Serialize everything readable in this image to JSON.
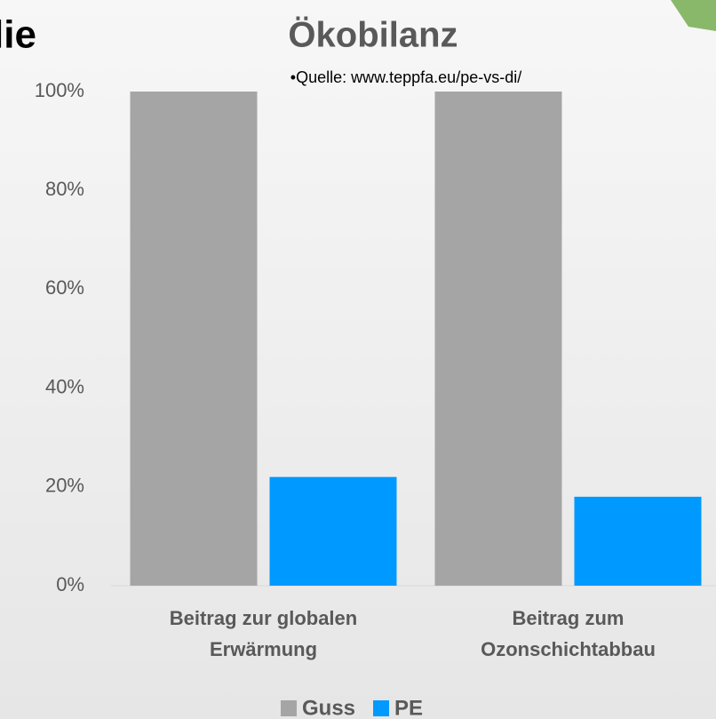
{
  "slide_text": "lie",
  "chart_data": {
    "type": "bar",
    "title": "Ökobilanz",
    "subtitle": "•Quelle: www.teppfa.eu/pe-vs-di/",
    "categories": [
      "Beitrag zur globalen Erwärmung",
      "Beitrag zum Ozonschichtabbau"
    ],
    "series": [
      {
        "name": "Guss",
        "color": "#a5a5a5",
        "values": [
          100,
          100
        ]
      },
      {
        "name": "PE",
        "color": "#0099ff",
        "values": [
          22,
          18
        ]
      }
    ],
    "ylim": [
      0,
      100
    ],
    "yticks": [
      {
        "value": 0,
        "label": "0%"
      },
      {
        "value": 20,
        "label": "20%"
      },
      {
        "value": 40,
        "label": "40%"
      },
      {
        "value": 60,
        "label": "60%"
      },
      {
        "value": 80,
        "label": "80%"
      },
      {
        "value": 100,
        "label": "100%"
      }
    ],
    "grid": false,
    "legend": "bottom"
  }
}
